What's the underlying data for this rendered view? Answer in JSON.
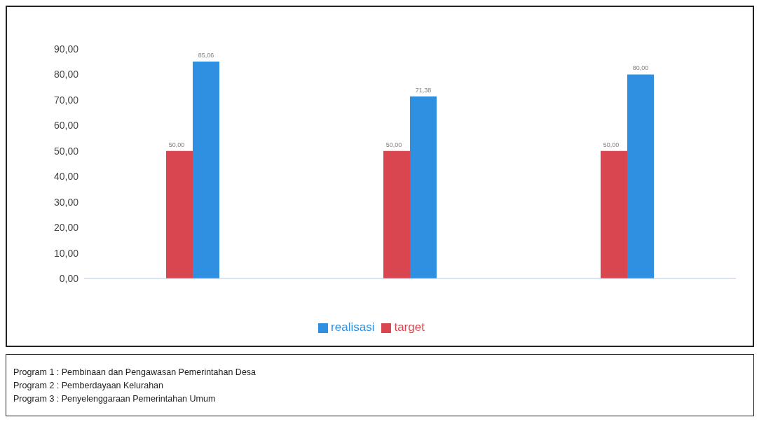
{
  "chart_data": {
    "type": "bar",
    "categories": [
      null,
      null,
      null
    ],
    "series": [
      {
        "name": "target",
        "color": "#d9464f",
        "values": [
          50,
          50,
          50
        ],
        "value_labels": [
          "50,00",
          "50,00",
          "50,00"
        ]
      },
      {
        "name": "realisasi",
        "color": "#2f8fe0",
        "values": [
          85.06,
          71.38,
          80
        ],
        "value_labels": [
          "85,06",
          "71,38",
          "80,00"
        ]
      }
    ],
    "ylim": [
      0,
      90
    ],
    "yticks": [
      {
        "value": 0,
        "label": "0,00"
      },
      {
        "value": 10,
        "label": "10,00"
      },
      {
        "value": 20,
        "label": "20,00"
      },
      {
        "value": 30,
        "label": "30,00"
      },
      {
        "value": 40,
        "label": "40,00"
      },
      {
        "value": 50,
        "label": "50,00"
      },
      {
        "value": 60,
        "label": "60,00"
      },
      {
        "value": 70,
        "label": "70,00"
      },
      {
        "value": 80,
        "label": "80,00"
      },
      {
        "value": 90,
        "label": "90,00"
      }
    ],
    "legend": "bottom",
    "annotations": [
      "Program 1 : Pembinaan dan Pengawasan Pemerintahan Desa",
      "Program 2 : Pemberdayaan Kelurahan",
      "Program 3 : Penyelenggaraan Pemerintahan Umum"
    ]
  }
}
